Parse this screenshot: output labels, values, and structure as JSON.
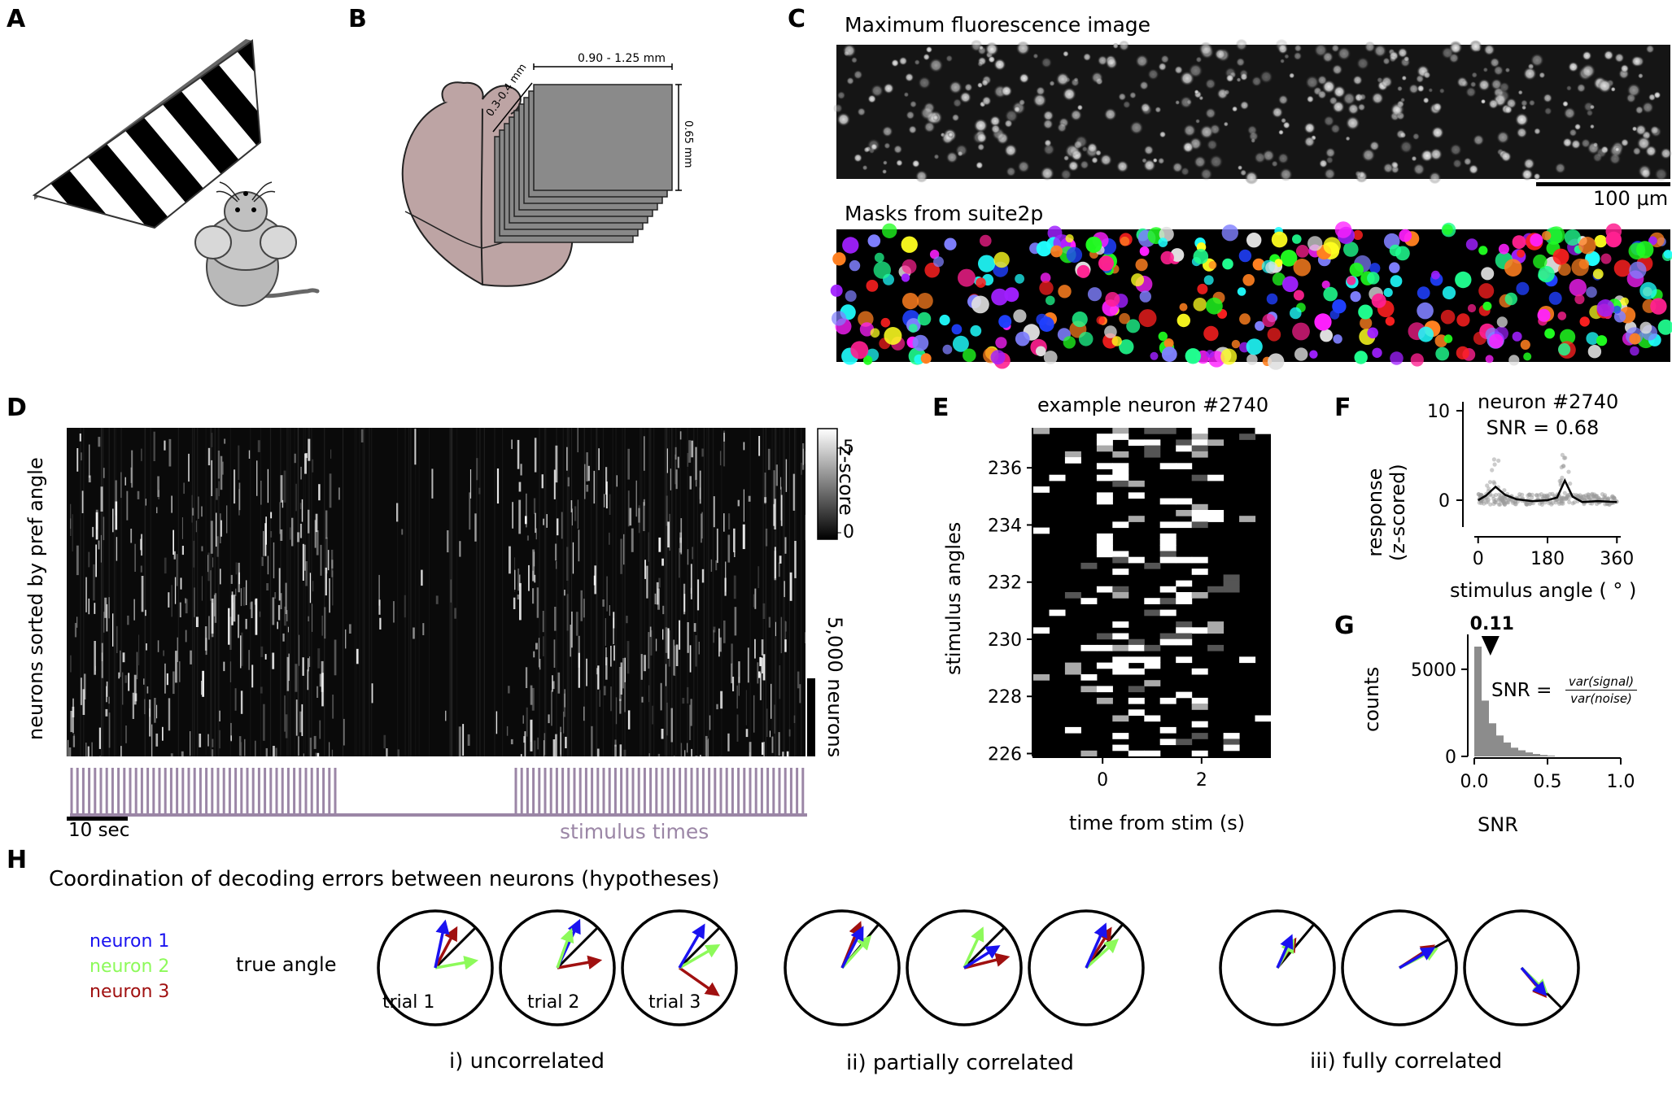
{
  "panel_labels": {
    "A": "A",
    "B": "B",
    "C": "C",
    "D": "D",
    "E": "E",
    "F": "F",
    "G": "G",
    "H": "H"
  },
  "panelB": {
    "width_label": "0.90 - 1.25 mm",
    "depth_label": "0.3-0.4 mm",
    "height_label": "0.65 mm"
  },
  "panelC": {
    "title_top": "Maximum fluorescence image",
    "title_bottom": "Masks from suite2p",
    "scalebar": "100 μm"
  },
  "panelD": {
    "ylabel": "neurons sorted by pref angle",
    "colorbar_label": "z-score",
    "colorbar_ticks": [
      "5",
      "0"
    ],
    "neuron_scale": "5,000 neurons",
    "time_scale": "10 sec",
    "stimulus_label": "stimulus times",
    "stim_color": "#9b86a6"
  },
  "panelE": {
    "title": "example neuron #2740",
    "ylabel": "stimulus angles",
    "xlabel": "time from stim (s)"
  },
  "panelF": {
    "title_line1": "neuron #2740",
    "title_line2": "SNR = 0.68",
    "ylabel_line1": "response",
    "ylabel_line2": "(z-scored)",
    "xlabel": "stimulus angle ( ° )"
  },
  "panelG": {
    "ylabel": "counts",
    "xlabel": "SNR",
    "median_label": "0.11",
    "formula_lhs": "SNR =",
    "formula_num": "var(signal)",
    "formula_den": "var(noise)"
  },
  "panelH": {
    "title": "Coordination of decoding errors between neurons (hypotheses)",
    "legend": [
      {
        "label": "neuron 1",
        "color": "#1a12f0"
      },
      {
        "label": "neuron 2",
        "color": "#8dfa5a"
      },
      {
        "label": "neuron 3",
        "color": "#a01010"
      }
    ],
    "true_angle_label": "true angle",
    "trial_labels": [
      "trial 1",
      "trial 2",
      "trial 3"
    ],
    "group_labels": [
      "i) uncorrelated",
      "ii) partially correlated",
      "iii) fully correlated"
    ]
  },
  "chart_data": [
    {
      "type": "heatmap",
      "panel": "E",
      "title": "example neuron #2740",
      "xlabel": "time from stim (s)",
      "ylabel": "stimulus angles",
      "xticks": [
        0,
        2
      ],
      "yticks": [
        226,
        228,
        230,
        232,
        234,
        236
      ],
      "xlim": [
        -1.4,
        3.4
      ],
      "ylim": [
        225.9,
        237.4
      ]
    },
    {
      "type": "scatter",
      "panel": "F",
      "title": "neuron #2740 SNR = 0.68",
      "xlabel": "stimulus angle ( ° )",
      "ylabel": "response (z-scored)",
      "xticks": [
        0,
        180,
        360
      ],
      "yticks": [
        0,
        10
      ],
      "xlim": [
        -10,
        370
      ],
      "ylim": [
        -3,
        11
      ],
      "tuning_curve": {
        "x": [
          0,
          20,
          45,
          70,
          100,
          140,
          180,
          205,
          225,
          245,
          270,
          310,
          360
        ],
        "y": [
          0,
          0.5,
          1.5,
          0.6,
          0.1,
          -0.1,
          0,
          0.3,
          2.2,
          0.4,
          -0.2,
          -0.1,
          -0.2
        ]
      }
    },
    {
      "type": "bar",
      "panel": "G",
      "xlabel": "SNR",
      "ylabel": "counts",
      "xticks": [
        0.0,
        0.5,
        1.0
      ],
      "yticks": [
        0,
        5000
      ],
      "xlim": [
        0,
        1
      ],
      "ylim": [
        0,
        7000
      ],
      "bin_centers": [
        0.025,
        0.075,
        0.125,
        0.175,
        0.225,
        0.275,
        0.325,
        0.375,
        0.425,
        0.475,
        0.525
      ],
      "values": [
        6300,
        3200,
        1900,
        1200,
        800,
        500,
        350,
        230,
        140,
        80,
        40
      ],
      "median_marker": 0.11
    }
  ]
}
